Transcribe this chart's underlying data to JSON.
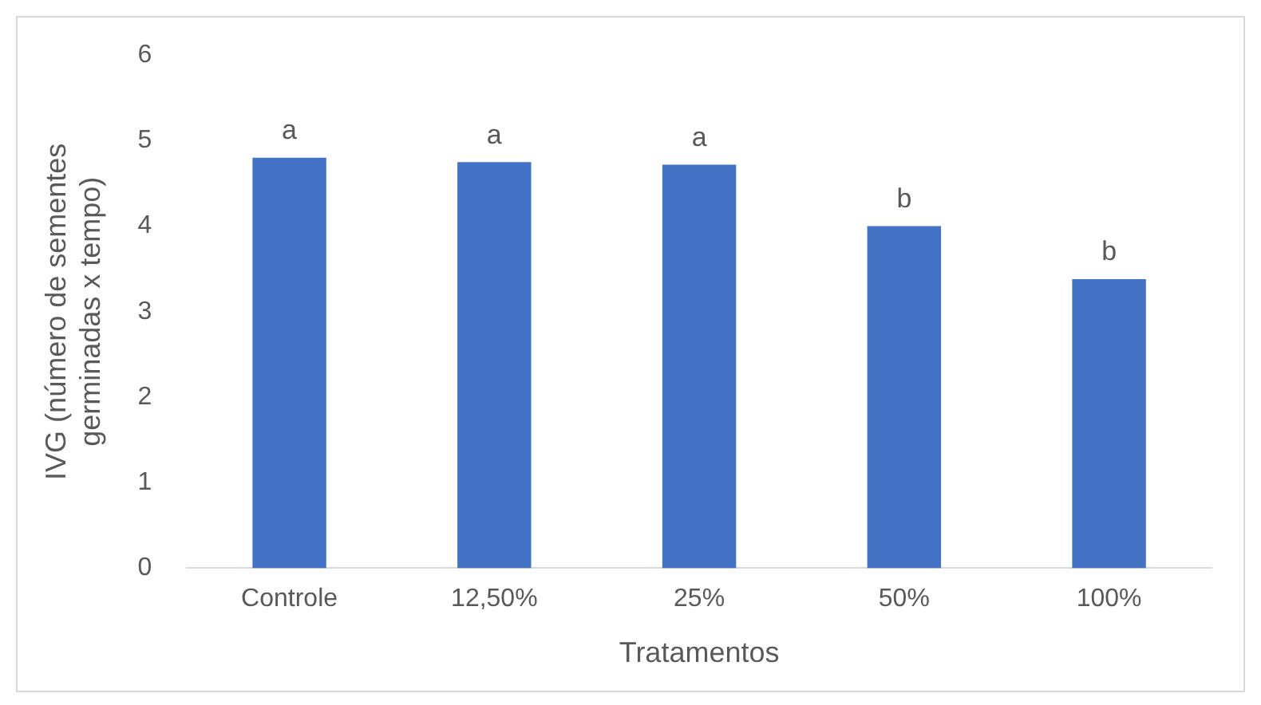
{
  "chart_data": {
    "type": "bar",
    "categories": [
      "Controle",
      "12,50%",
      "25%",
      "50%",
      "100%"
    ],
    "values": [
      4.8,
      4.75,
      4.72,
      4.0,
      3.38
    ],
    "color": "#4472c4",
    "xlabel": "Tratamentos",
    "ylabel": "IVG (número de sementes germinadas x tempo)",
    "ylim": [
      0,
      6
    ],
    "yticks": [
      0,
      1,
      2,
      3,
      4,
      5,
      6
    ],
    "grid": false,
    "legend": false,
    "annotations": [
      {
        "text": "a",
        "x": "Controle",
        "y": 4.8
      },
      {
        "text": "a",
        "x": "12,50%",
        "y": 4.75
      },
      {
        "text": "a",
        "x": "25%",
        "y": 4.72
      },
      {
        "text": "b",
        "x": "50%",
        "y": 4.0
      },
      {
        "text": "b",
        "x": "100%",
        "y": 3.38
      }
    ]
  }
}
